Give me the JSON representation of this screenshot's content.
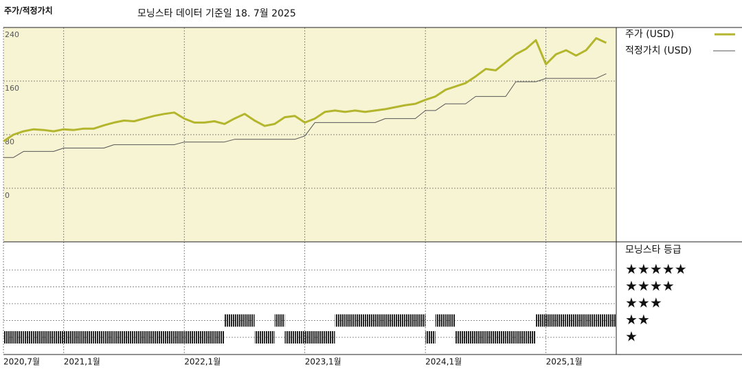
{
  "chart_data": {
    "type": "line",
    "title": "주가/적정가치",
    "subtitle": "모닝스타 데이터 기준일 18. 7월 2025",
    "x": [
      "2020-07",
      "2020-08",
      "2020-09",
      "2020-10",
      "2020-11",
      "2020-12",
      "2021-01",
      "2021-02",
      "2021-03",
      "2021-04",
      "2021-05",
      "2021-06",
      "2021-07",
      "2021-08",
      "2021-09",
      "2021-10",
      "2021-11",
      "2021-12",
      "2022-01",
      "2022-02",
      "2022-03",
      "2022-04",
      "2022-05",
      "2022-06",
      "2022-07",
      "2022-08",
      "2022-09",
      "2022-10",
      "2022-11",
      "2022-12",
      "2023-01",
      "2023-02",
      "2023-03",
      "2023-04",
      "2023-05",
      "2023-06",
      "2023-07",
      "2023-08",
      "2023-09",
      "2023-10",
      "2023-11",
      "2023-12",
      "2024-01",
      "2024-02",
      "2024-03",
      "2024-04",
      "2024-05",
      "2024-06",
      "2024-07",
      "2024-08",
      "2024-09",
      "2024-10",
      "2024-11",
      "2024-12",
      "2025-01",
      "2025-02",
      "2025-03",
      "2025-04",
      "2025-05",
      "2025-06",
      "2025-07"
    ],
    "series": [
      {
        "name": "주가 (USD)",
        "color": "#b3b52c",
        "width": 3,
        "values": [
          70,
          80,
          85,
          88,
          87,
          85,
          88,
          87,
          89,
          89,
          94,
          98,
          101,
          100,
          104,
          108,
          111,
          113,
          104,
          98,
          98,
          100,
          96,
          104,
          111,
          101,
          93,
          96,
          106,
          108,
          98,
          104,
          114,
          116,
          114,
          116,
          114,
          116,
          118,
          121,
          124,
          126,
          132,
          137,
          147,
          152,
          157,
          167,
          178,
          176,
          188,
          200,
          208,
          221,
          185,
          200,
          206,
          198,
          206,
          224,
          217
        ]
      },
      {
        "name": "적정가치 (USD)",
        "color": "#555555",
        "width": 1,
        "values": [
          46,
          46,
          55,
          55,
          55,
          55,
          60,
          60,
          60,
          60,
          60,
          65,
          65,
          65,
          65,
          65,
          65,
          65,
          69,
          69,
          69,
          69,
          69,
          73,
          73,
          73,
          73,
          73,
          73,
          73,
          78,
          98,
          98,
          98,
          98,
          98,
          98,
          98,
          104,
          104,
          104,
          104,
          116,
          116,
          126,
          126,
          126,
          137,
          137,
          137,
          137,
          159,
          159,
          159,
          164,
          164,
          164,
          164,
          164,
          164,
          171
        ]
      }
    ],
    "xlim": [
      "2020-07",
      "2025-08"
    ],
    "xticks": [
      {
        "value": "2020-07",
        "label": "2020,7월"
      },
      {
        "value": "2021-01",
        "label": "2021,1월"
      },
      {
        "value": "2022-01",
        "label": "2022,1월"
      },
      {
        "value": "2023-01",
        "label": "2023,1월"
      },
      {
        "value": "2024-01",
        "label": "2024,1월"
      },
      {
        "value": "2025-01",
        "label": "2025,1월"
      }
    ],
    "ylim": [
      -80,
      240
    ],
    "yticks": [
      0,
      80,
      160,
      240
    ],
    "grid": true,
    "background": "#f7f4d4",
    "rating": {
      "title": "모닝스타 등급",
      "levels": [
        5,
        4,
        3,
        2,
        1
      ],
      "level_labels": [
        "★★★★★",
        "★★★★",
        "★★★",
        "★★",
        "★"
      ],
      "color": "#222222",
      "values": [
        1,
        1,
        1,
        1,
        1,
        1,
        1,
        1,
        1,
        1,
        1,
        1,
        1,
        1,
        1,
        1,
        1,
        1,
        1,
        1,
        1,
        1,
        2,
        2,
        2,
        1,
        1,
        2,
        1,
        1,
        1,
        1,
        1,
        2,
        2,
        2,
        2,
        2,
        2,
        2,
        2,
        2,
        1,
        2,
        2,
        1,
        1,
        1,
        1,
        1,
        1,
        1,
        1,
        2,
        2,
        2,
        2,
        2,
        2,
        2,
        2
      ]
    }
  }
}
